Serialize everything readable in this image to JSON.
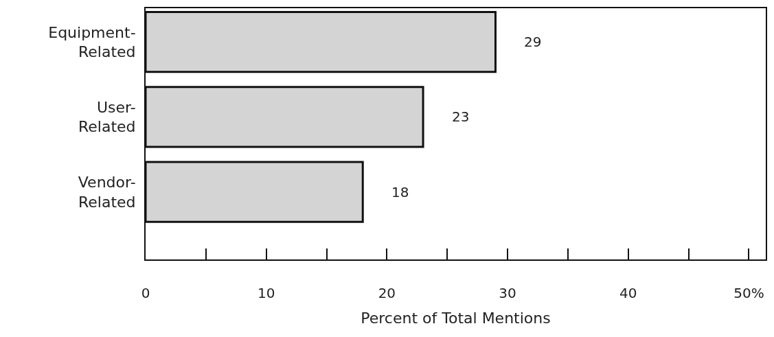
{
  "chart_data": {
    "type": "bar",
    "orientation": "horizontal",
    "categories": [
      "Equipment-\nRelated",
      "User-\nRelated",
      "Vendor-\nRelated"
    ],
    "values": [
      29,
      23,
      18
    ],
    "color": "#d4d4d4",
    "data_labels": true,
    "xlabel": "Percent of Total Mentions",
    "xlim": [
      0,
      51.4
    ],
    "xticks": [
      0,
      {
        "value": 5,
        "label": null
      },
      10,
      {
        "value": 15,
        "label": null
      },
      20,
      {
        "value": 25,
        "label": null
      },
      30,
      {
        "value": 35,
        "label": null
      },
      40,
      {
        "value": 45,
        "label": null
      },
      {
        "value": 50,
        "label": "50%"
      }
    ]
  }
}
